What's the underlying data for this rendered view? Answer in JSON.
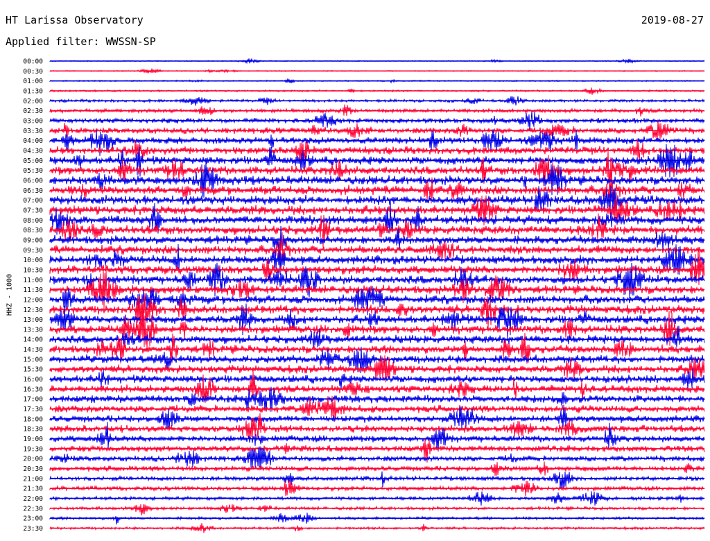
{
  "header": {
    "title": "HT Larissa Observatory",
    "date": "2019-08-27",
    "filter": "Applied filter: WWSSN-SP"
  },
  "chart_data": {
    "type": "line",
    "ylabel": "HHZ - 1000",
    "row_times": [
      "00:00",
      "00:30",
      "01:00",
      "01:30",
      "02:00",
      "02:30",
      "03:00",
      "03:30",
      "04:00",
      "04:30",
      "05:00",
      "05:30",
      "06:00",
      "06:30",
      "07:00",
      "07:30",
      "08:00",
      "08:30",
      "09:00",
      "09:30",
      "10:00",
      "10:30",
      "11:00",
      "11:30",
      "12:00",
      "12:30",
      "13:00",
      "13:30",
      "14:00",
      "14:30",
      "15:00",
      "15:30",
      "16:00",
      "16:30",
      "17:00",
      "17:30",
      "18:00",
      "18:30",
      "19:00",
      "19:30",
      "20:00",
      "20:30",
      "21:00",
      "21:30",
      "22:00",
      "22:30",
      "23:00",
      "23:30"
    ],
    "colors": [
      "#0000e6",
      "#ff0033"
    ],
    "noise_level": [
      0.6,
      0.6,
      0.8,
      1.0,
      1.6,
      2.2,
      2.8,
      3.4,
      4.0,
      4.4,
      4.8,
      5.0,
      5.2,
      5.2,
      5.2,
      5.2,
      5.2,
      5.2,
      5.0,
      5.0,
      5.0,
      5.0,
      5.0,
      5.0,
      5.0,
      5.0,
      5.0,
      5.0,
      4.8,
      4.8,
      4.6,
      4.6,
      4.6,
      4.4,
      4.4,
      4.2,
      4.0,
      4.0,
      3.8,
      3.6,
      3.2,
      3.0,
      2.6,
      2.4,
      2.0,
      1.8,
      1.6,
      1.4
    ]
  }
}
